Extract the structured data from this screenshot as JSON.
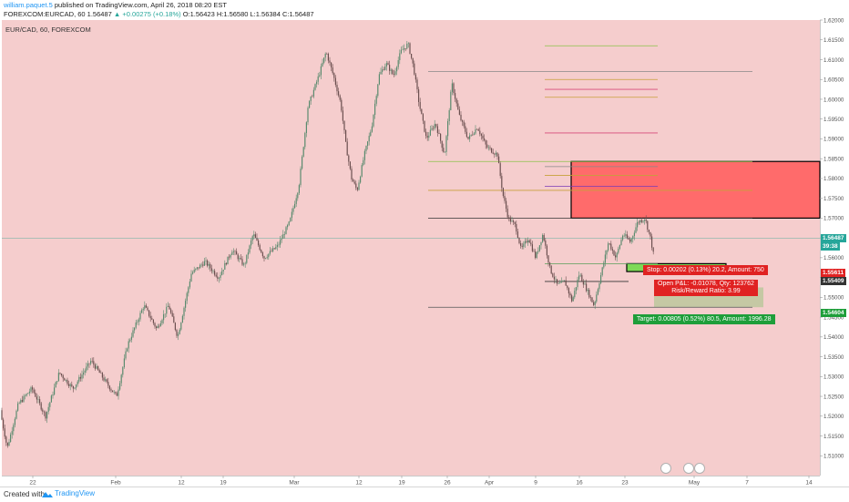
{
  "header": {
    "author": "william.paquet.5",
    "published": " published on TradingView.com, April 26, 2018 08:20 EST",
    "symbol_line_a": "FOREXCOM:EURCAD, 60  1.56487 ",
    "change": "▲ +0.00275 (+0.18%)",
    "ohlc": "  O:1.56423  H:1.56580  L:1.56384  C:1.56487"
  },
  "legend": "EUR/CAD, 60, FOREXCOM",
  "footer": {
    "created": "Created with",
    "brand": "TradingView"
  },
  "colors": {
    "background": "#f5cdcd",
    "candle_up": "#5a8a6e",
    "candle_down": "#6b4f4f",
    "stop_zone": "#ff6b6b",
    "target_zone": "#a8d88a",
    "label_red": "#e02222",
    "label_green": "#1e9e3a",
    "current_tag": "#26a69a"
  },
  "price_tags": {
    "current": "1.56487",
    "countdown": "39:38",
    "p1": "1.55611",
    "p2": "1.55409",
    "p3": "1.54604"
  },
  "position": {
    "stop_label": "Stop: 0.00202 (0.13%) 20.2, Amount: 750",
    "pnl_label_1": "Open P&L: -0.01078, Qty: 123762",
    "pnl_label_2": "Risk/Reward Ratio: 3.99",
    "target_label": "Target: 0.00805 (0.52%) 80.5, Amount: 1996.28"
  },
  "chart_data": {
    "type": "candlestick",
    "title": "EUR/CAD, 60, FOREXCOM",
    "ylim": [
      1.505,
      1.62
    ],
    "y_ticks": [
      "1.62000",
      "1.61500",
      "1.61000",
      "1.60500",
      "1.60000",
      "1.59500",
      "1.59000",
      "1.58500",
      "1.58000",
      "1.57500",
      "1.57000",
      "1.56500",
      "1.56000",
      "1.55500",
      "1.55000",
      "1.54500",
      "1.54000",
      "1.53500",
      "1.53000",
      "1.52500",
      "1.52000",
      "1.51500",
      "1.51000"
    ],
    "x_ticks": [
      "22",
      "Feb",
      "12",
      "19",
      "Mar",
      "12",
      "19",
      "26",
      "Apr",
      "9",
      "16",
      "23",
      "May",
      "7",
      "14"
    ],
    "price_path": [
      [
        0,
        1.5215
      ],
      [
        8,
        1.512
      ],
      [
        20,
        1.523
      ],
      [
        35,
        1.527
      ],
      [
        50,
        1.52
      ],
      [
        65,
        1.531
      ],
      [
        80,
        1.527
      ],
      [
        100,
        1.534
      ],
      [
        118,
        1.528
      ],
      [
        128,
        1.525
      ],
      [
        140,
        1.538
      ],
      [
        158,
        1.548
      ],
      [
        172,
        1.542
      ],
      [
        185,
        1.548
      ],
      [
        195,
        1.54
      ],
      [
        210,
        1.556
      ],
      [
        225,
        1.559
      ],
      [
        240,
        1.555
      ],
      [
        255,
        1.562
      ],
      [
        268,
        1.558
      ],
      [
        278,
        1.566
      ],
      [
        290,
        1.56
      ],
      [
        305,
        1.563
      ],
      [
        318,
        1.569
      ],
      [
        328,
        1.578
      ],
      [
        338,
        1.598
      ],
      [
        350,
        1.606
      ],
      [
        358,
        1.612
      ],
      [
        366,
        1.606
      ],
      [
        374,
        1.599
      ],
      [
        380,
        1.588
      ],
      [
        386,
        1.58
      ],
      [
        392,
        1.577
      ],
      [
        400,
        1.586
      ],
      [
        408,
        1.593
      ],
      [
        416,
        1.606
      ],
      [
        424,
        1.609
      ],
      [
        432,
        1.606
      ],
      [
        440,
        1.612
      ],
      [
        448,
        1.614
      ],
      [
        454,
        1.608
      ],
      [
        460,
        1.599
      ],
      [
        468,
        1.59
      ],
      [
        478,
        1.594
      ],
      [
        488,
        1.586
      ],
      [
        496,
        1.604
      ],
      [
        504,
        1.596
      ],
      [
        514,
        1.59
      ],
      [
        524,
        1.593
      ],
      [
        534,
        1.588
      ],
      [
        546,
        1.586
      ],
      [
        552,
        1.576
      ],
      [
        558,
        1.57
      ],
      [
        566,
        1.568
      ],
      [
        572,
        1.562
      ],
      [
        580,
        1.565
      ],
      [
        588,
        1.56
      ],
      [
        596,
        1.566
      ],
      [
        604,
        1.557
      ],
      [
        612,
        1.553
      ],
      [
        620,
        1.554
      ],
      [
        628,
        1.549
      ],
      [
        636,
        1.556
      ],
      [
        644,
        1.552
      ],
      [
        652,
        1.548
      ],
      [
        660,
        1.556
      ],
      [
        668,
        1.564
      ],
      [
        676,
        1.56
      ],
      [
        684,
        1.566
      ],
      [
        692,
        1.564
      ],
      [
        700,
        1.569
      ],
      [
        708,
        1.57
      ],
      [
        714,
        1.565
      ],
      [
        718,
        1.56
      ]
    ],
    "horizontal_levels": [
      {
        "price": 1.6135,
        "x0": 598,
        "x1": 722,
        "color": "#8bc34a"
      },
      {
        "price": 1.607,
        "x0": 470,
        "x1": 826,
        "color": "#888888"
      },
      {
        "price": 1.605,
        "x0": 598,
        "x1": 722,
        "color": "#c6a03a"
      },
      {
        "price": 1.6025,
        "x0": 598,
        "x1": 722,
        "color": "#d84a7a"
      },
      {
        "price": 1.6005,
        "x0": 598,
        "x1": 722,
        "color": "#c6a03a"
      },
      {
        "price": 1.5915,
        "x0": 598,
        "x1": 722,
        "color": "#d84a7a"
      },
      {
        "price": 1.5843,
        "x0": 470,
        "x1": 826,
        "color": "#8bc34a"
      },
      {
        "price": 1.583,
        "x0": 598,
        "x1": 722,
        "color": "#888888"
      },
      {
        "price": 1.5808,
        "x0": 598,
        "x1": 722,
        "color": "#c6a03a"
      },
      {
        "price": 1.578,
        "x0": 598,
        "x1": 722,
        "color": "#7a3ab5"
      },
      {
        "price": 1.577,
        "x0": 470,
        "x1": 826,
        "color": "#c6a03a"
      },
      {
        "price": 1.57,
        "x0": 470,
        "x1": 826,
        "color": "#333333"
      },
      {
        "price": 1.5585,
        "x0": 598,
        "x1": 722,
        "color": "#5aa05a"
      },
      {
        "price": 1.554,
        "x0": 598,
        "x1": 690,
        "color": "#333333"
      },
      {
        "price": 1.5475,
        "x0": 470,
        "x1": 826,
        "color": "#555555"
      }
    ],
    "zones": [
      {
        "kind": "supply",
        "top": 1.5843,
        "bottom": 1.57,
        "x0": 627,
        "x1": 900,
        "color": "#ff6b6b"
      },
      {
        "kind": "position-stop",
        "top": 1.5585,
        "bottom": 1.5565,
        "x0": 688,
        "x1": 797,
        "color": "#7ed957"
      },
      {
        "kind": "position-target",
        "top": 1.5525,
        "bottom": 1.5475,
        "x0": 718,
        "x1": 838,
        "color": "#b9c79a"
      }
    ]
  }
}
